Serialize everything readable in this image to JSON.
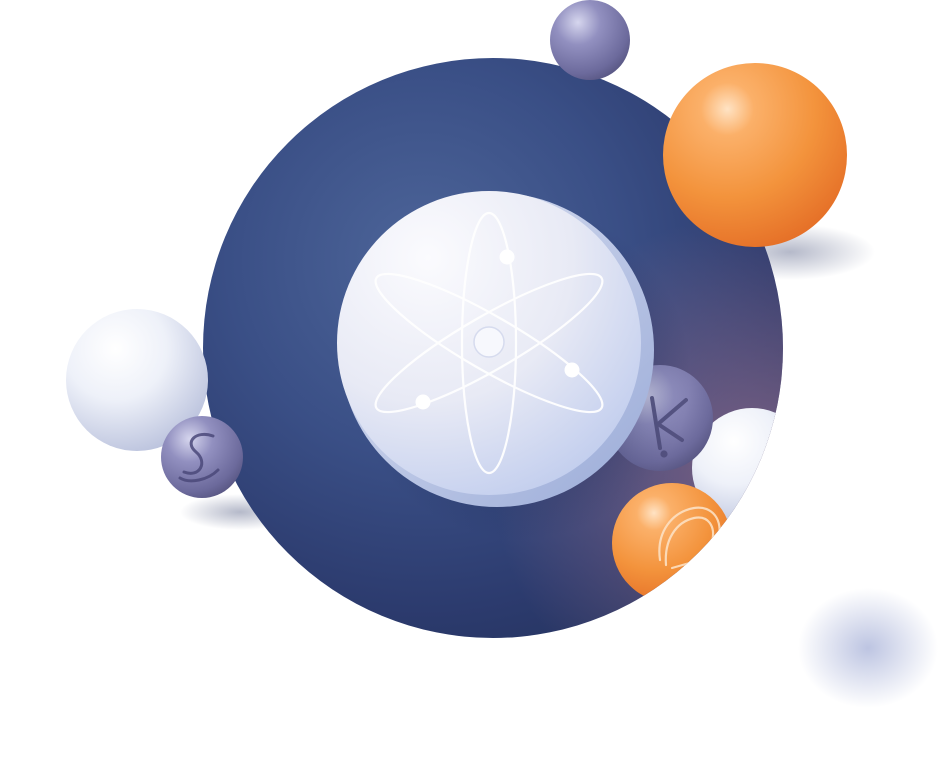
{
  "illustration": {
    "subject": "atom-coin",
    "palette": {
      "disc_navy": "#2f3f73",
      "disc_glow": "#7a5f86",
      "coin_light": "#eef0f8",
      "coin_shade": "#bcc9ea",
      "orange": "#f5993f",
      "orange_dark": "#e86e22",
      "pearl": "#e9edf8",
      "violet": "#7a78a8"
    },
    "icons": [
      "atom-icon",
      "s-glyph-icon",
      "k-glyph-icon",
      "ribbon-glyph-icon"
    ]
  }
}
